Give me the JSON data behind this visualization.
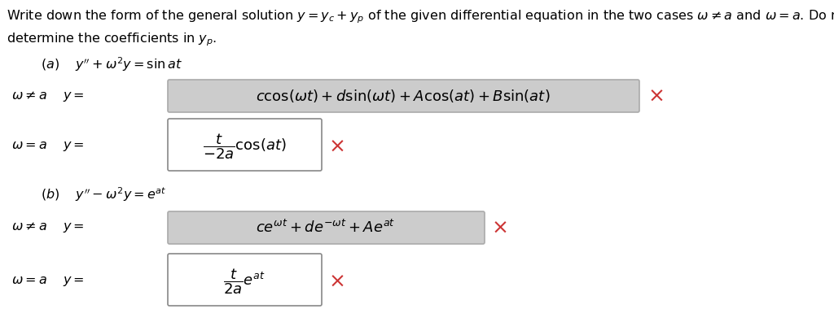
{
  "background_color": "#ffffff",
  "fig_width": 10.24,
  "fig_height": 4.12,
  "cross_color": "#cc3333",
  "box_bg_gray": "#cccccc",
  "box_border_gray": "#aaaaaa",
  "box_border_white": "#888888",
  "text_color": "#000000"
}
